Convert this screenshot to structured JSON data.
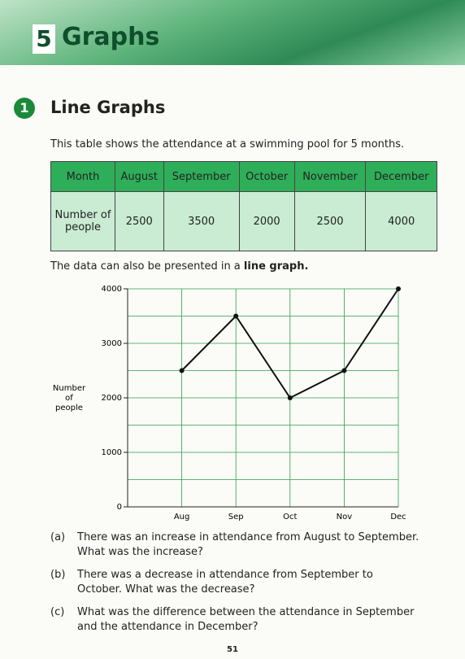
{
  "header": {
    "chapter": "5",
    "title": "Graphs"
  },
  "section": {
    "number": "1",
    "title": "Line Graphs"
  },
  "intro": "This table shows the attendance at a swimming pool for 5 months.",
  "table": {
    "header": [
      "Month",
      "August",
      "September",
      "October",
      "November",
      "December"
    ],
    "rows": [
      [
        "Number of people",
        2500,
        3500,
        2000,
        2500,
        4000
      ]
    ]
  },
  "lead": {
    "text": "The data can also be presented in a",
    "bold": "line graph."
  },
  "chart_data": {
    "type": "line",
    "categories": [
      "Aug",
      "Sep",
      "Oct",
      "Nov",
      "Dec"
    ],
    "ylabel": [
      "Number",
      "of",
      "people"
    ],
    "series": [
      {
        "name": "Number of people",
        "color": "#111111",
        "values": [
          2500,
          3500,
          2000,
          2500,
          4000
        ]
      }
    ],
    "ylim": [
      0,
      4000
    ],
    "yticks": [
      0,
      1000,
      2000,
      3000,
      4000
    ],
    "minor_yticks": [
      500,
      1500,
      2500,
      3500
    ],
    "grid": true,
    "grid_color": "#2e9e4e"
  },
  "questions": [
    {
      "label": "(a)",
      "lines": [
        "There was an increase in attendance from August to September.",
        "What was the increase?"
      ]
    },
    {
      "label": "(b)",
      "lines": [
        "There was a decrease in attendance from September to",
        "October. What was the decrease?"
      ]
    },
    {
      "label": "(c)",
      "lines": [
        "What was the difference between the attendance in September",
        "and the attendance in December?"
      ]
    }
  ],
  "page_number": "51"
}
